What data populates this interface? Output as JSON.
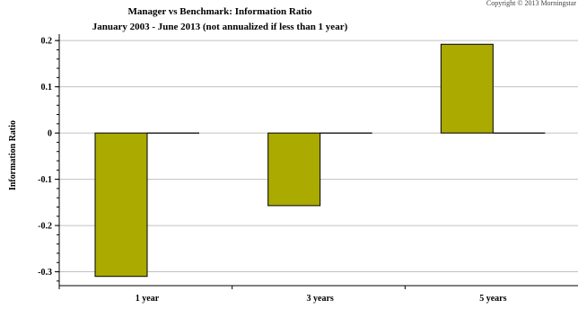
{
  "copyright": "Copyright © 2013 Morningstar",
  "chart_data": {
    "type": "bar",
    "title": "Manager vs Benchmark: Information Ratio",
    "subtitle": "January 2003 - June 2013 (not annualized if less than 1 year)",
    "xlabel": "",
    "ylabel": "Information Ratio",
    "categories": [
      "1 year",
      "3 years",
      "5 years"
    ],
    "series": [
      {
        "values": [
          -0.31,
          -0.157,
          0.192
        ],
        "color": "#aaaa00"
      },
      {
        "values": [
          0,
          0,
          0
        ],
        "color": "#000000"
      }
    ],
    "ylim": [
      -0.33,
      0.21
    ],
    "yticks": [
      0.2,
      0.1,
      0,
      -0.1,
      -0.2,
      -0.3
    ],
    "ytick_labels": [
      "0.2",
      "0.1",
      "0",
      "-0.1",
      "-0.2",
      "-0.3"
    ],
    "grid": true,
    "legend": "none"
  }
}
